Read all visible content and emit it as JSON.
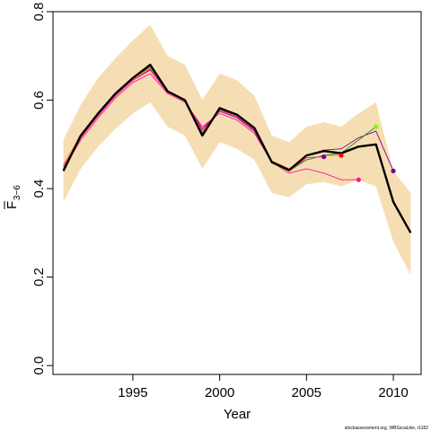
{
  "chart_data": {
    "type": "line",
    "xlabel": "Year",
    "ylabel_main": "F",
    "ylabel_sub": "3−6",
    "xlim": [
      1990.4,
      2011.6
    ],
    "ylim": [
      -0.02,
      0.8
    ],
    "x_ticks": [
      1995,
      2000,
      2005,
      2010
    ],
    "y_ticks": [
      0.0,
      0.2,
      0.4,
      0.6,
      0.8
    ],
    "y_tick_labels": [
      "0.0",
      "0.2",
      "0.4",
      "0.6",
      "0.8"
    ],
    "grid": false,
    "colors": {
      "band": "#f5deb3",
      "main": "#000000",
      "retro1": "#ff1493",
      "retro2": "#8b008b",
      "retro3": "#ff8c00",
      "retro4": "#228b22",
      "endpoint_pink": "#ff1493",
      "endpoint_purple": "#800080",
      "endpoint_green": "#7cfc00",
      "endpoint_red": "#ff0000"
    },
    "band": {
      "x": [
        1991,
        1992,
        1993,
        1994,
        1995,
        1996,
        1997,
        1998,
        1999,
        2000,
        2001,
        2002,
        2003,
        2004,
        2005,
        2006,
        2007,
        2008,
        2009,
        2010,
        2011
      ],
      "upper": [
        0.51,
        0.59,
        0.65,
        0.695,
        0.735,
        0.77,
        0.7,
        0.68,
        0.6,
        0.66,
        0.645,
        0.61,
        0.52,
        0.505,
        0.54,
        0.55,
        0.54,
        0.57,
        0.595,
        0.44,
        0.39
      ],
      "lower": [
        0.37,
        0.445,
        0.495,
        0.535,
        0.57,
        0.595,
        0.54,
        0.52,
        0.445,
        0.505,
        0.49,
        0.465,
        0.39,
        0.38,
        0.41,
        0.415,
        0.405,
        0.42,
        0.405,
        0.28,
        0.205
      ]
    },
    "series": [
      {
        "key": "retro1",
        "x": [
          1991,
          1992,
          1993,
          1994,
          1995,
          1996,
          1997,
          1998,
          1999,
          2000,
          2001,
          2002,
          2003,
          2004,
          2005,
          2006,
          2007,
          2008
        ],
        "values": [
          0.445,
          0.51,
          0.56,
          0.605,
          0.64,
          0.66,
          0.615,
          0.595,
          0.54,
          0.57,
          0.555,
          0.525,
          0.46,
          0.435,
          0.445,
          0.435,
          0.42,
          0.42
        ],
        "endpoint_color_key": "endpoint_pink"
      },
      {
        "key": "retro2",
        "x": [
          1991,
          1992,
          1993,
          1994,
          1995,
          1996,
          1997,
          1998,
          1999,
          2000,
          2001,
          2002,
          2003,
          2004,
          2005,
          2006,
          2007,
          2008,
          2009,
          2010
        ],
        "values": [
          0.45,
          0.515,
          0.565,
          0.61,
          0.645,
          0.668,
          0.618,
          0.598,
          0.535,
          0.575,
          0.56,
          0.53,
          0.458,
          0.44,
          0.475,
          0.487,
          0.49,
          0.515,
          0.53,
          0.44
        ],
        "endpoint_color_key": "endpoint_purple"
      },
      {
        "key": "retro3",
        "x": [
          1991,
          1992,
          1993,
          1994,
          1995,
          1996,
          1997,
          1998,
          1999,
          2000,
          2001,
          2002,
          2003,
          2004,
          2005,
          2006,
          2007
        ],
        "values": [
          0.455,
          0.52,
          0.57,
          0.613,
          0.648,
          0.672,
          0.62,
          0.6,
          0.53,
          0.578,
          0.565,
          0.535,
          0.463,
          0.445,
          0.465,
          0.475,
          0.475
        ],
        "endpoint_color_key": "endpoint_red"
      },
      {
        "key": "retro4",
        "x": [
          1991,
          1992,
          1993,
          1994,
          1995,
          1996,
          1997,
          1998,
          1999,
          2000,
          2001,
          2002,
          2003,
          2004,
          2005,
          2006,
          2007,
          2008,
          2009
        ],
        "values": [
          0.445,
          0.515,
          0.568,
          0.613,
          0.65,
          0.675,
          0.62,
          0.6,
          0.525,
          0.58,
          0.565,
          0.535,
          0.458,
          0.44,
          0.465,
          0.475,
          0.48,
          0.51,
          0.54
        ],
        "endpoint_color_key": "endpoint_green"
      },
      {
        "key": "retro5",
        "x": [
          1991,
          1992,
          1993,
          1994,
          1995,
          1996,
          1997,
          1998,
          1999,
          2000,
          2001,
          2002,
          2003,
          2004,
          2005,
          2006
        ],
        "values": [
          0.45,
          0.515,
          0.565,
          0.61,
          0.645,
          0.67,
          0.618,
          0.598,
          0.53,
          0.578,
          0.562,
          0.532,
          0.46,
          0.44,
          0.47,
          0.472
        ],
        "endpoint_color_key": "endpoint_purple"
      },
      {
        "key": "main",
        "x": [
          1991,
          1992,
          1993,
          1994,
          1995,
          1996,
          1997,
          1998,
          1999,
          2000,
          2001,
          2002,
          2003,
          2004,
          2005,
          2006,
          2007,
          2008,
          2009,
          2010,
          2011
        ],
        "values": [
          0.44,
          0.52,
          0.57,
          0.615,
          0.65,
          0.68,
          0.62,
          0.6,
          0.52,
          0.582,
          0.567,
          0.537,
          0.46,
          0.442,
          0.475,
          0.485,
          0.48,
          0.495,
          0.5,
          0.37,
          0.3
        ]
      }
    ]
  },
  "footer_text": "stockassessment.org, WBSscaLike, r1182"
}
